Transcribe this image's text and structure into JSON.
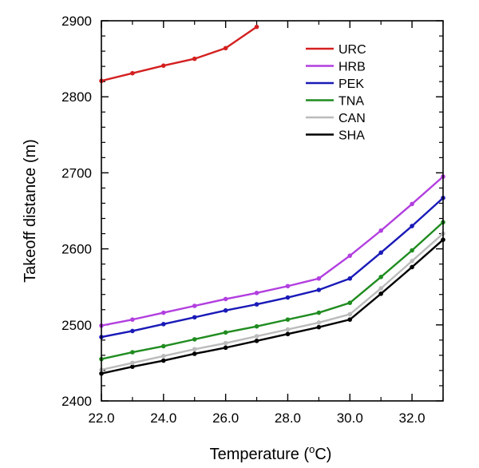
{
  "chart_data": {
    "type": "line",
    "xlabel_main": "Temperature (",
    "xlabel_sup": "o",
    "xlabel_unit": "C)",
    "ylabel": "Takeoff distance (m)",
    "xlim": [
      22,
      33
    ],
    "ylim": [
      2400,
      2900
    ],
    "x_ticks": [
      22,
      24,
      26,
      28,
      30,
      32
    ],
    "x_tick_labels": [
      "22.0",
      "24.0",
      "26.0",
      "28.0",
      "30.0",
      "32.0"
    ],
    "y_ticks": [
      2400,
      2500,
      2600,
      2700,
      2800,
      2900
    ],
    "y_tick_labels": [
      "2400",
      "2500",
      "2600",
      "2700",
      "2800",
      "2900"
    ],
    "legend_position": "top-right",
    "series": [
      {
        "name": "URC",
        "color": "#d42020",
        "x": [
          22,
          23,
          24,
          25,
          26,
          27
        ],
        "values": [
          2821,
          2831,
          2841,
          2850,
          2864,
          2892
        ]
      },
      {
        "name": "HRB",
        "color": "#b23fdf",
        "x": [
          22,
          23,
          24,
          25,
          26,
          27,
          28,
          29,
          30,
          31,
          32,
          33
        ],
        "values": [
          2499,
          2507,
          2516,
          2525,
          2534,
          2542,
          2551,
          2561,
          2591,
          2624,
          2659,
          2695
        ]
      },
      {
        "name": "PEK",
        "color": "#1a1ab8",
        "x": [
          22,
          23,
          24,
          25,
          26,
          27,
          28,
          29,
          30,
          31,
          32,
          33
        ],
        "values": [
          2484,
          2492,
          2501,
          2510,
          2519,
          2527,
          2536,
          2546,
          2561,
          2595,
          2630,
          2667
        ]
      },
      {
        "name": "TNA",
        "color": "#1f8c1f",
        "x": [
          22,
          23,
          24,
          25,
          26,
          27,
          28,
          29,
          30,
          31,
          32,
          33
        ],
        "values": [
          2455,
          2464,
          2472,
          2481,
          2490,
          2498,
          2507,
          2516,
          2529,
          2563,
          2598,
          2635
        ]
      },
      {
        "name": "CAN",
        "color": "#bbbbbb",
        "x": [
          22,
          23,
          24,
          25,
          26,
          27,
          28,
          29,
          30,
          31,
          32,
          33
        ],
        "values": [
          2441,
          2450,
          2459,
          2468,
          2476,
          2485,
          2494,
          2503,
          2514,
          2548,
          2584,
          2620
        ]
      },
      {
        "name": "SHA",
        "color": "#000000",
        "x": [
          22,
          23,
          24,
          25,
          26,
          27,
          28,
          29,
          30,
          31,
          32,
          33
        ],
        "values": [
          2436,
          2445,
          2453,
          2462,
          2470,
          2479,
          2488,
          2497,
          2507,
          2541,
          2576,
          2612
        ]
      }
    ]
  }
}
